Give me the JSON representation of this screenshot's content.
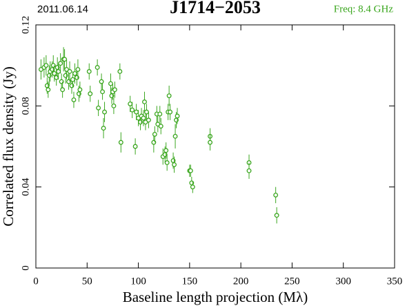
{
  "chart_data": {
    "type": "scatter",
    "date": "2011.06.14",
    "title": "J1714−2053",
    "subtitle": "Freq: 8.4 GHz",
    "x_label": "Baseline length projection (Mλ)",
    "y_label": "Correlated flux density (Jy)",
    "color": "#3aa61e",
    "x": [
      5,
      8,
      10,
      11,
      12,
      13,
      14,
      16,
      17,
      18,
      20,
      21,
      22,
      24,
      25,
      26,
      27,
      28,
      29,
      30,
      32,
      33,
      35,
      36,
      37,
      38,
      40,
      41,
      42,
      43,
      52,
      53,
      60,
      61,
      64,
      65,
      66,
      67,
      73,
      74,
      75,
      76,
      77,
      82,
      83,
      92,
      94,
      97,
      98,
      100,
      102,
      103,
      105,
      106,
      107,
      108,
      110,
      115,
      116,
      118,
      119,
      121,
      122,
      124,
      126,
      127,
      128,
      129,
      130,
      131,
      134,
      135,
      136,
      137,
      138,
      150,
      151,
      152,
      153,
      170,
      170,
      208,
      208,
      234,
      235
    ],
    "values": [
      0.098,
      0.099,
      0.1,
      0.09,
      0.088,
      0.095,
      0.097,
      0.098,
      0.1,
      0.096,
      0.094,
      0.099,
      0.097,
      0.101,
      0.092,
      0.088,
      0.103,
      0.103,
      0.095,
      0.098,
      0.092,
      0.097,
      0.09,
      0.093,
      0.083,
      0.096,
      0.094,
      0.098,
      0.086,
      0.088,
      0.097,
      0.086,
      0.099,
      0.079,
      0.092,
      0.087,
      0.069,
      0.077,
      0.091,
      0.085,
      0.087,
      0.08,
      0.088,
      0.097,
      0.062,
      0.081,
      0.078,
      0.06,
      0.077,
      0.074,
      0.072,
      0.075,
      0.074,
      0.082,
      0.072,
      0.077,
      0.073,
      0.062,
      0.066,
      0.076,
      0.071,
      0.076,
      0.07,
      0.055,
      0.056,
      0.058,
      0.052,
      0.077,
      0.085,
      0.077,
      0.053,
      0.051,
      0.065,
      0.073,
      0.075,
      0.048,
      0.048,
      0.042,
      0.04,
      0.065,
      0.062,
      0.052,
      0.048,
      0.036,
      0.026
    ],
    "errors": [
      0.005,
      0.005,
      0.005,
      0.004,
      0.004,
      0.005,
      0.005,
      0.004,
      0.005,
      0.004,
      0.004,
      0.005,
      0.004,
      0.005,
      0.004,
      0.004,
      0.006,
      0.005,
      0.004,
      0.005,
      0.004,
      0.005,
      0.004,
      0.004,
      0.004,
      0.005,
      0.004,
      0.005,
      0.004,
      0.004,
      0.004,
      0.004,
      0.004,
      0.004,
      0.004,
      0.004,
      0.005,
      0.005,
      0.005,
      0.004,
      0.004,
      0.004,
      0.004,
      0.004,
      0.005,
      0.004,
      0.004,
      0.004,
      0.004,
      0.004,
      0.004,
      0.004,
      0.004,
      0.005,
      0.004,
      0.004,
      0.004,
      0.005,
      0.004,
      0.004,
      0.004,
      0.004,
      0.004,
      0.004,
      0.004,
      0.004,
      0.004,
      0.004,
      0.005,
      0.004,
      0.004,
      0.004,
      0.006,
      0.004,
      0.004,
      0.003,
      0.003,
      0.003,
      0.003,
      0.004,
      0.004,
      0.004,
      0.004,
      0.004,
      0.004
    ],
    "xlim": [
      0,
      350
    ],
    "xticks": [
      0,
      50,
      100,
      150,
      200,
      250,
      300,
      350
    ],
    "ylim": [
      0,
      0.12
    ],
    "yticks": [
      0,
      0.04,
      0.08,
      0.12
    ]
  }
}
